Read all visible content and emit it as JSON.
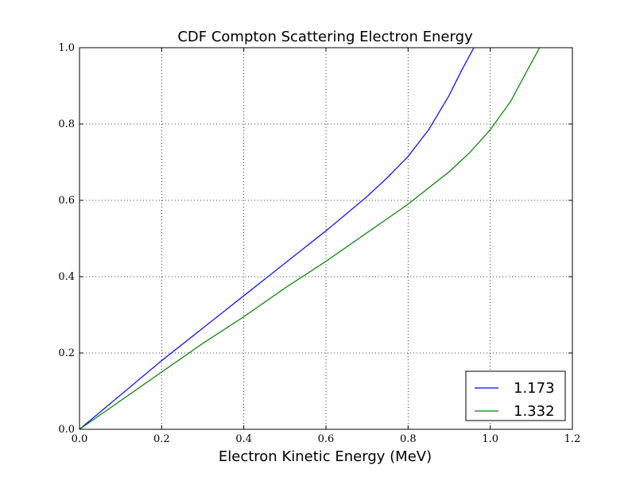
{
  "chart_data": {
    "type": "line",
    "title": "CDF Compton Scattering Electron Energy",
    "xlabel": "Electron Kinetic Energy (MeV)",
    "ylabel": "",
    "xlim": [
      0.0,
      1.2
    ],
    "ylim": [
      0.0,
      1.0
    ],
    "xticks": [
      "0.0",
      "0.2",
      "0.4",
      "0.6",
      "0.8",
      "1.0",
      "1.2"
    ],
    "yticks": [
      "0.0",
      "0.2",
      "0.4",
      "0.6",
      "0.8",
      "1.0"
    ],
    "grid": true,
    "legend_position": "lower-right",
    "series": [
      {
        "name": "1.173",
        "color": "#0000ff",
        "x": [
          0.0,
          0.1,
          0.2,
          0.3,
          0.4,
          0.5,
          0.6,
          0.7,
          0.75,
          0.8,
          0.85,
          0.9,
          0.93,
          0.96
        ],
        "y": [
          0.0,
          0.09,
          0.18,
          0.265,
          0.35,
          0.435,
          0.52,
          0.61,
          0.66,
          0.715,
          0.785,
          0.875,
          0.94,
          1.0
        ]
      },
      {
        "name": "1.332",
        "color": "#008000",
        "x": [
          0.0,
          0.1,
          0.2,
          0.3,
          0.4,
          0.5,
          0.6,
          0.7,
          0.8,
          0.9,
          0.95,
          1.0,
          1.05,
          1.1,
          1.12
        ],
        "y": [
          0.0,
          0.075,
          0.15,
          0.225,
          0.295,
          0.37,
          0.44,
          0.515,
          0.59,
          0.675,
          0.725,
          0.785,
          0.86,
          0.96,
          1.0
        ]
      }
    ]
  }
}
